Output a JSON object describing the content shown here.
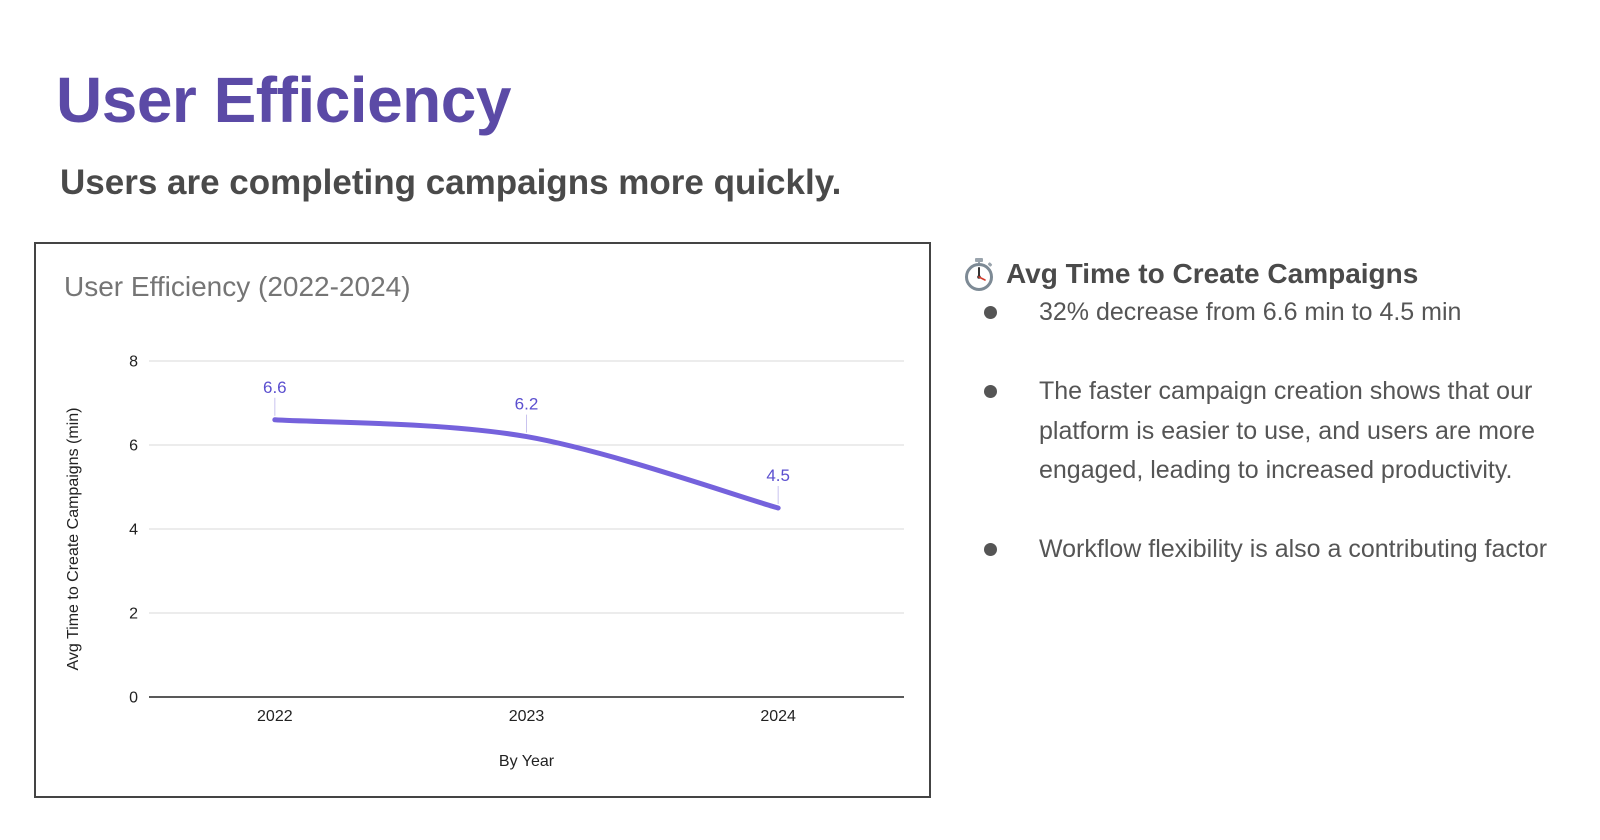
{
  "slide": {
    "title": "User Efficiency",
    "subtitle": "Users are completing campaigns more quickly."
  },
  "colors": {
    "title": "#5b4aa6",
    "subtitle": "#4a4a4a",
    "body_text": "#555555",
    "series_line": "#7562dc",
    "data_label": "#5b4fcf",
    "grid": "#d9d9d9",
    "axis": "#222222",
    "chart_title": "#757575",
    "bullet": "#555555"
  },
  "chart_data": {
    "type": "line",
    "title": "User Efficiency (2022-2024)",
    "categories": [
      "2022",
      "2023",
      "2024"
    ],
    "series": [
      {
        "name": "Avg Time to Create Campaigns (min)",
        "values": [
          6.6,
          6.2,
          4.5
        ]
      }
    ],
    "data_labels": [
      "6.6",
      "6.2",
      "4.5"
    ],
    "xlabel": "By Year",
    "ylabel": "Avg Time to Create Campaigns (min)",
    "ylim": [
      0,
      8
    ],
    "yticks": [
      0,
      2,
      4,
      6,
      8
    ],
    "grid": true,
    "smooth": true
  },
  "side_panel": {
    "icon": "stopwatch-icon",
    "heading": "Avg Time to Create Campaigns",
    "bullets": [
      "32% decrease from 6.6 min to 4.5 min",
      "The faster campaign creation shows that our platform is easier to use, and users are more engaged, leading to increased productivity.",
      "Workflow flexibility is also a contributing factor"
    ]
  }
}
